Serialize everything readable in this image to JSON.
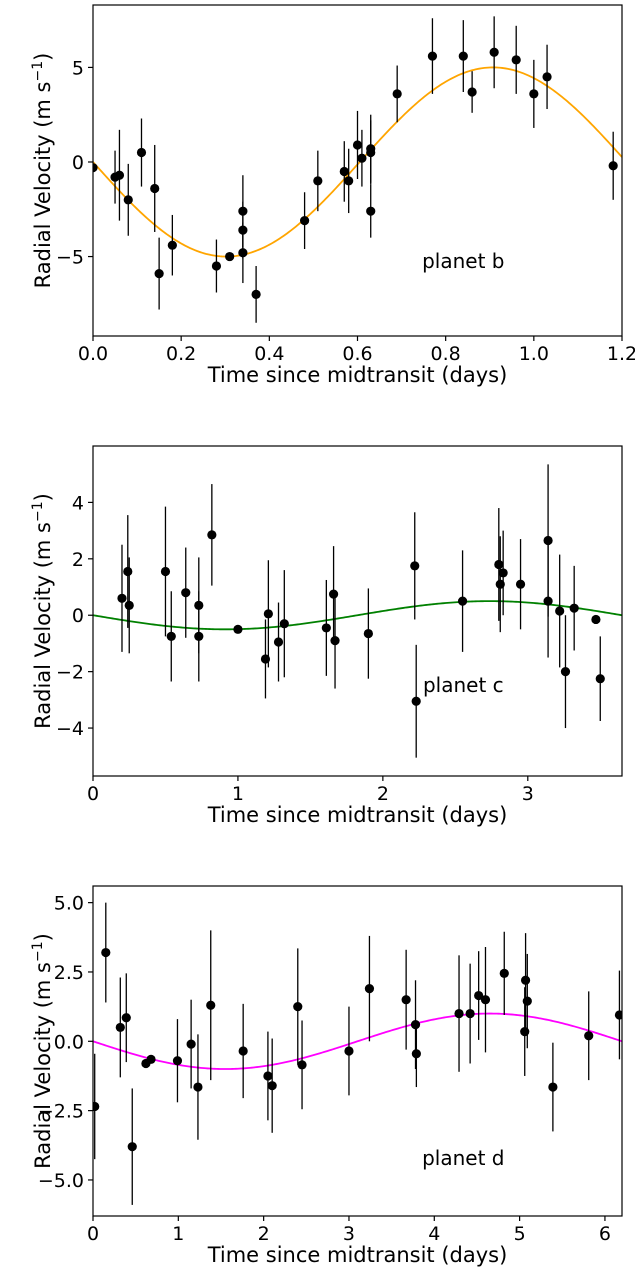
{
  "chart_data": [
    {
      "type": "scatter",
      "xlabel": "Time since midtransit (days)",
      "ylabel_main": "Radial Velocity (m s",
      "ylabel_sup": "−1",
      "ylabel_close": ")",
      "annotation": "planet b",
      "xlim": [
        0,
        1.2
      ],
      "ylim": [
        -9.2,
        8.3
      ],
      "xticks": [
        0.0,
        0.2,
        0.4,
        0.6,
        0.8,
        1.0,
        1.2
      ],
      "xtick_labels": [
        "0.0",
        "0.2",
        "0.4",
        "0.6",
        "0.8",
        "1.0",
        "1.2"
      ],
      "yticks": [
        -5,
        0,
        5
      ],
      "ytick_labels": [
        "−5",
        "0",
        "5"
      ],
      "model": {
        "kind": "sine",
        "amplitude": 5.0,
        "period": 1.21,
        "color": "#FFA500"
      },
      "points": [
        {
          "x": 0.0,
          "y": -0.3,
          "err": 0
        },
        {
          "x": 0.05,
          "y": -0.8,
          "err": 1.4
        },
        {
          "x": 0.06,
          "y": -0.7,
          "err": 2.4
        },
        {
          "x": 0.08,
          "y": -2.0,
          "err": 1.9
        },
        {
          "x": 0.11,
          "y": 0.5,
          "err": 1.8
        },
        {
          "x": 0.14,
          "y": -1.4,
          "err": 2.3
        },
        {
          "x": 0.15,
          "y": -5.9,
          "err": 1.9
        },
        {
          "x": 0.18,
          "y": -4.4,
          "err": 1.6
        },
        {
          "x": 0.28,
          "y": -5.5,
          "err": 1.4
        },
        {
          "x": 0.31,
          "y": -5.0,
          "err": 0
        },
        {
          "x": 0.34,
          "y": -2.6,
          "err": 1.9
        },
        {
          "x": 0.34,
          "y": -3.6,
          "err": 1.5
        },
        {
          "x": 0.34,
          "y": -4.8,
          "err": 1.6
        },
        {
          "x": 0.37,
          "y": -7.0,
          "err": 1.5
        },
        {
          "x": 0.48,
          "y": -3.1,
          "err": 1.5
        },
        {
          "x": 0.51,
          "y": -1.0,
          "err": 1.6
        },
        {
          "x": 0.57,
          "y": -0.5,
          "err": 1.6
        },
        {
          "x": 0.58,
          "y": -1.0,
          "err": 1.7
        },
        {
          "x": 0.6,
          "y": 0.9,
          "err": 1.8
        },
        {
          "x": 0.61,
          "y": 0.2,
          "err": 1.5
        },
        {
          "x": 0.63,
          "y": 0.7,
          "err": 1.8
        },
        {
          "x": 0.63,
          "y": 0.5,
          "err": 1.7
        },
        {
          "x": 0.63,
          "y": -2.6,
          "err": 1.4
        },
        {
          "x": 0.69,
          "y": 3.6,
          "err": 1.5
        },
        {
          "x": 0.77,
          "y": 5.6,
          "err": 2.0
        },
        {
          "x": 0.84,
          "y": 5.6,
          "err": 1.9
        },
        {
          "x": 0.86,
          "y": 3.7,
          "err": 1.1
        },
        {
          "x": 0.91,
          "y": 5.8,
          "err": 1.9
        },
        {
          "x": 0.96,
          "y": 5.4,
          "err": 1.8
        },
        {
          "x": 1.0,
          "y": 3.6,
          "err": 1.8
        },
        {
          "x": 1.03,
          "y": 4.5,
          "err": 1.7
        },
        {
          "x": 1.18,
          "y": -0.2,
          "err": 1.8
        }
      ]
    },
    {
      "type": "scatter",
      "xlabel": "Time since midtransit (days)",
      "ylabel_main": "Radial Velocity (m s",
      "ylabel_sup": "−1",
      "ylabel_close": ")",
      "annotation": "planet c",
      "xlim": [
        0,
        3.65
      ],
      "ylim": [
        -5.7,
        6.0
      ],
      "xticks": [
        0,
        1,
        2,
        3
      ],
      "xtick_labels": [
        "0",
        "1",
        "2",
        "3"
      ],
      "yticks": [
        -4,
        -2,
        0,
        2,
        4
      ],
      "ytick_labels": [
        "−4",
        "−2",
        "0",
        "2",
        "4"
      ],
      "model": {
        "kind": "sine",
        "amplitude": 0.5,
        "period": 3.65,
        "color": "#008000"
      },
      "points": [
        {
          "x": 0.2,
          "y": 0.6,
          "err": 1.9
        },
        {
          "x": 0.24,
          "y": 1.55,
          "err": 2.0
        },
        {
          "x": 0.25,
          "y": 0.35,
          "err": 1.7
        },
        {
          "x": 0.5,
          "y": 1.55,
          "err": 2.3
        },
        {
          "x": 0.54,
          "y": -0.75,
          "err": 1.6
        },
        {
          "x": 0.64,
          "y": 0.8,
          "err": 1.6
        },
        {
          "x": 0.73,
          "y": 0.35,
          "err": 1.7
        },
        {
          "x": 0.73,
          "y": -0.75,
          "err": 1.6
        },
        {
          "x": 0.82,
          "y": 2.85,
          "err": 1.8
        },
        {
          "x": 1.0,
          "y": -0.5,
          "err": 0
        },
        {
          "x": 1.19,
          "y": -1.55,
          "err": 1.4
        },
        {
          "x": 1.21,
          "y": 0.05,
          "err": 1.9
        },
        {
          "x": 1.28,
          "y": -0.95,
          "err": 1.4
        },
        {
          "x": 1.32,
          "y": -0.3,
          "err": 1.9
        },
        {
          "x": 1.61,
          "y": -0.45,
          "err": 1.7
        },
        {
          "x": 1.66,
          "y": 0.75,
          "err": 1.7
        },
        {
          "x": 1.67,
          "y": -0.9,
          "err": 1.7
        },
        {
          "x": 1.9,
          "y": -0.65,
          "err": 1.6
        },
        {
          "x": 2.22,
          "y": 1.75,
          "err": 1.9
        },
        {
          "x": 2.23,
          "y": -3.05,
          "err": 2.0
        },
        {
          "x": 2.55,
          "y": 0.5,
          "err": 1.8
        },
        {
          "x": 2.8,
          "y": 1.8,
          "err": 2.0
        },
        {
          "x": 2.81,
          "y": 1.1,
          "err": 1.7
        },
        {
          "x": 2.83,
          "y": 1.5,
          "err": 1.5
        },
        {
          "x": 2.95,
          "y": 1.1,
          "err": 1.6
        },
        {
          "x": 3.14,
          "y": 2.65,
          "err": 2.7
        },
        {
          "x": 3.14,
          "y": 0.5,
          "err": 2.0
        },
        {
          "x": 3.22,
          "y": 0.15,
          "err": 2.0
        },
        {
          "x": 3.26,
          "y": -2.0,
          "err": 2.0
        },
        {
          "x": 3.32,
          "y": 0.25,
          "err": 1.5
        },
        {
          "x": 3.47,
          "y": -0.15,
          "err": 0
        },
        {
          "x": 3.5,
          "y": -2.25,
          "err": 1.5
        }
      ]
    },
    {
      "type": "scatter",
      "xlabel": "Time since midtransit (days)",
      "ylabel_main": "Radial Velocity (m s",
      "ylabel_sup": "−1",
      "ylabel_close": ")",
      "annotation": "planet d",
      "xlim": [
        0,
        6.2
      ],
      "ylim": [
        -6.3,
        5.6
      ],
      "xticks": [
        0,
        1,
        2,
        3,
        4,
        5,
        6
      ],
      "xtick_labels": [
        "0",
        "1",
        "2",
        "3",
        "4",
        "5",
        "6"
      ],
      "yticks": [
        -5.0,
        -2.5,
        0.0,
        2.5,
        5.0
      ],
      "ytick_labels": [
        "−5.0",
        "−2.5",
        "0.0",
        "2.5",
        "5.0"
      ],
      "model": {
        "kind": "sine",
        "amplitude": 1.0,
        "period": 6.2,
        "color": "#FF00FF"
      },
      "points": [
        {
          "x": 0.02,
          "y": -2.35,
          "err": 1.9
        },
        {
          "x": 0.15,
          "y": 3.2,
          "err": 1.8
        },
        {
          "x": 0.32,
          "y": 0.5,
          "err": 1.8
        },
        {
          "x": 0.39,
          "y": 0.85,
          "err": 1.6
        },
        {
          "x": 0.46,
          "y": -3.8,
          "err": 2.1
        },
        {
          "x": 0.62,
          "y": -0.8,
          "err": 0
        },
        {
          "x": 0.68,
          "y": -0.65,
          "err": 0
        },
        {
          "x": 0.99,
          "y": -0.7,
          "err": 1.5
        },
        {
          "x": 1.15,
          "y": -0.1,
          "err": 1.6
        },
        {
          "x": 1.23,
          "y": -1.65,
          "err": 1.9
        },
        {
          "x": 1.38,
          "y": 1.3,
          "err": 2.7
        },
        {
          "x": 1.76,
          "y": -0.35,
          "err": 1.7
        },
        {
          "x": 2.05,
          "y": -1.25,
          "err": 1.6
        },
        {
          "x": 2.1,
          "y": -1.6,
          "err": 1.7
        },
        {
          "x": 2.4,
          "y": 1.25,
          "err": 2.1
        },
        {
          "x": 2.45,
          "y": -0.85,
          "err": 1.6
        },
        {
          "x": 3.0,
          "y": -0.35,
          "err": 1.6
        },
        {
          "x": 3.24,
          "y": 1.9,
          "err": 1.9
        },
        {
          "x": 3.67,
          "y": 1.5,
          "err": 1.8
        },
        {
          "x": 3.78,
          "y": 0.6,
          "err": 1.6
        },
        {
          "x": 3.79,
          "y": -0.45,
          "err": 1.2
        },
        {
          "x": 4.29,
          "y": 1.0,
          "err": 2.1
        },
        {
          "x": 4.42,
          "y": 1.0,
          "err": 1.8
        },
        {
          "x": 4.52,
          "y": 1.65,
          "err": 1.6
        },
        {
          "x": 4.6,
          "y": 1.5,
          "err": 1.9
        },
        {
          "x": 4.82,
          "y": 2.45,
          "err": 1.5
        },
        {
          "x": 5.06,
          "y": 0.35,
          "err": 1.6
        },
        {
          "x": 5.07,
          "y": 2.2,
          "err": 1.7
        },
        {
          "x": 5.09,
          "y": 1.45,
          "err": 1.7
        },
        {
          "x": 5.39,
          "y": -1.65,
          "err": 1.6
        },
        {
          "x": 5.81,
          "y": 0.2,
          "err": 1.6
        },
        {
          "x": 6.17,
          "y": 0.95,
          "err": 1.6
        }
      ]
    }
  ]
}
